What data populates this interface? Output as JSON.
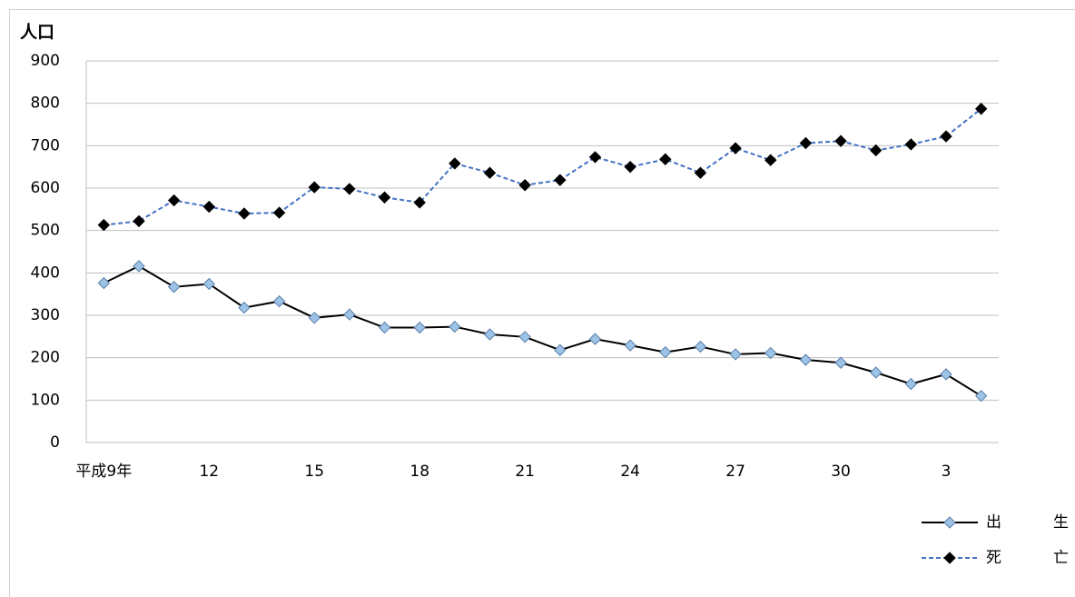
{
  "chart_data": {
    "type": "line",
    "y_label": "人口",
    "categories": [
      "平成9年",
      null,
      null,
      "12",
      null,
      null,
      "15",
      null,
      null,
      "18",
      null,
      null,
      "21",
      null,
      null,
      "24",
      null,
      null,
      "27",
      null,
      null,
      "30",
      null,
      null,
      "3",
      null
    ],
    "series": [
      {
        "name": "出　生",
        "color": "#000000",
        "marker_color": "#9dc3e6",
        "dashed": false,
        "values": [
          376,
          416,
          367,
          374,
          318,
          333,
          294,
          302,
          271,
          271,
          273,
          255,
          249,
          218,
          244,
          229,
          213,
          226,
          208,
          211,
          195,
          188,
          165,
          138,
          161,
          110
        ]
      },
      {
        "name": "死　亡",
        "color": "#4472c4",
        "marker_color": "#000000",
        "dashed": true,
        "values": [
          513,
          522,
          571,
          556,
          540,
          542,
          602,
          598,
          578,
          566,
          658,
          636,
          607,
          619,
          673,
          650,
          668,
          636,
          694,
          666,
          706,
          711,
          689,
          703,
          722,
          787
        ]
      }
    ],
    "ylim": [
      0,
      900
    ],
    "yticks": [
      0,
      100,
      200,
      300,
      400,
      500,
      600,
      700,
      800,
      900
    ],
    "grid": true,
    "legend": "bottom-right"
  }
}
